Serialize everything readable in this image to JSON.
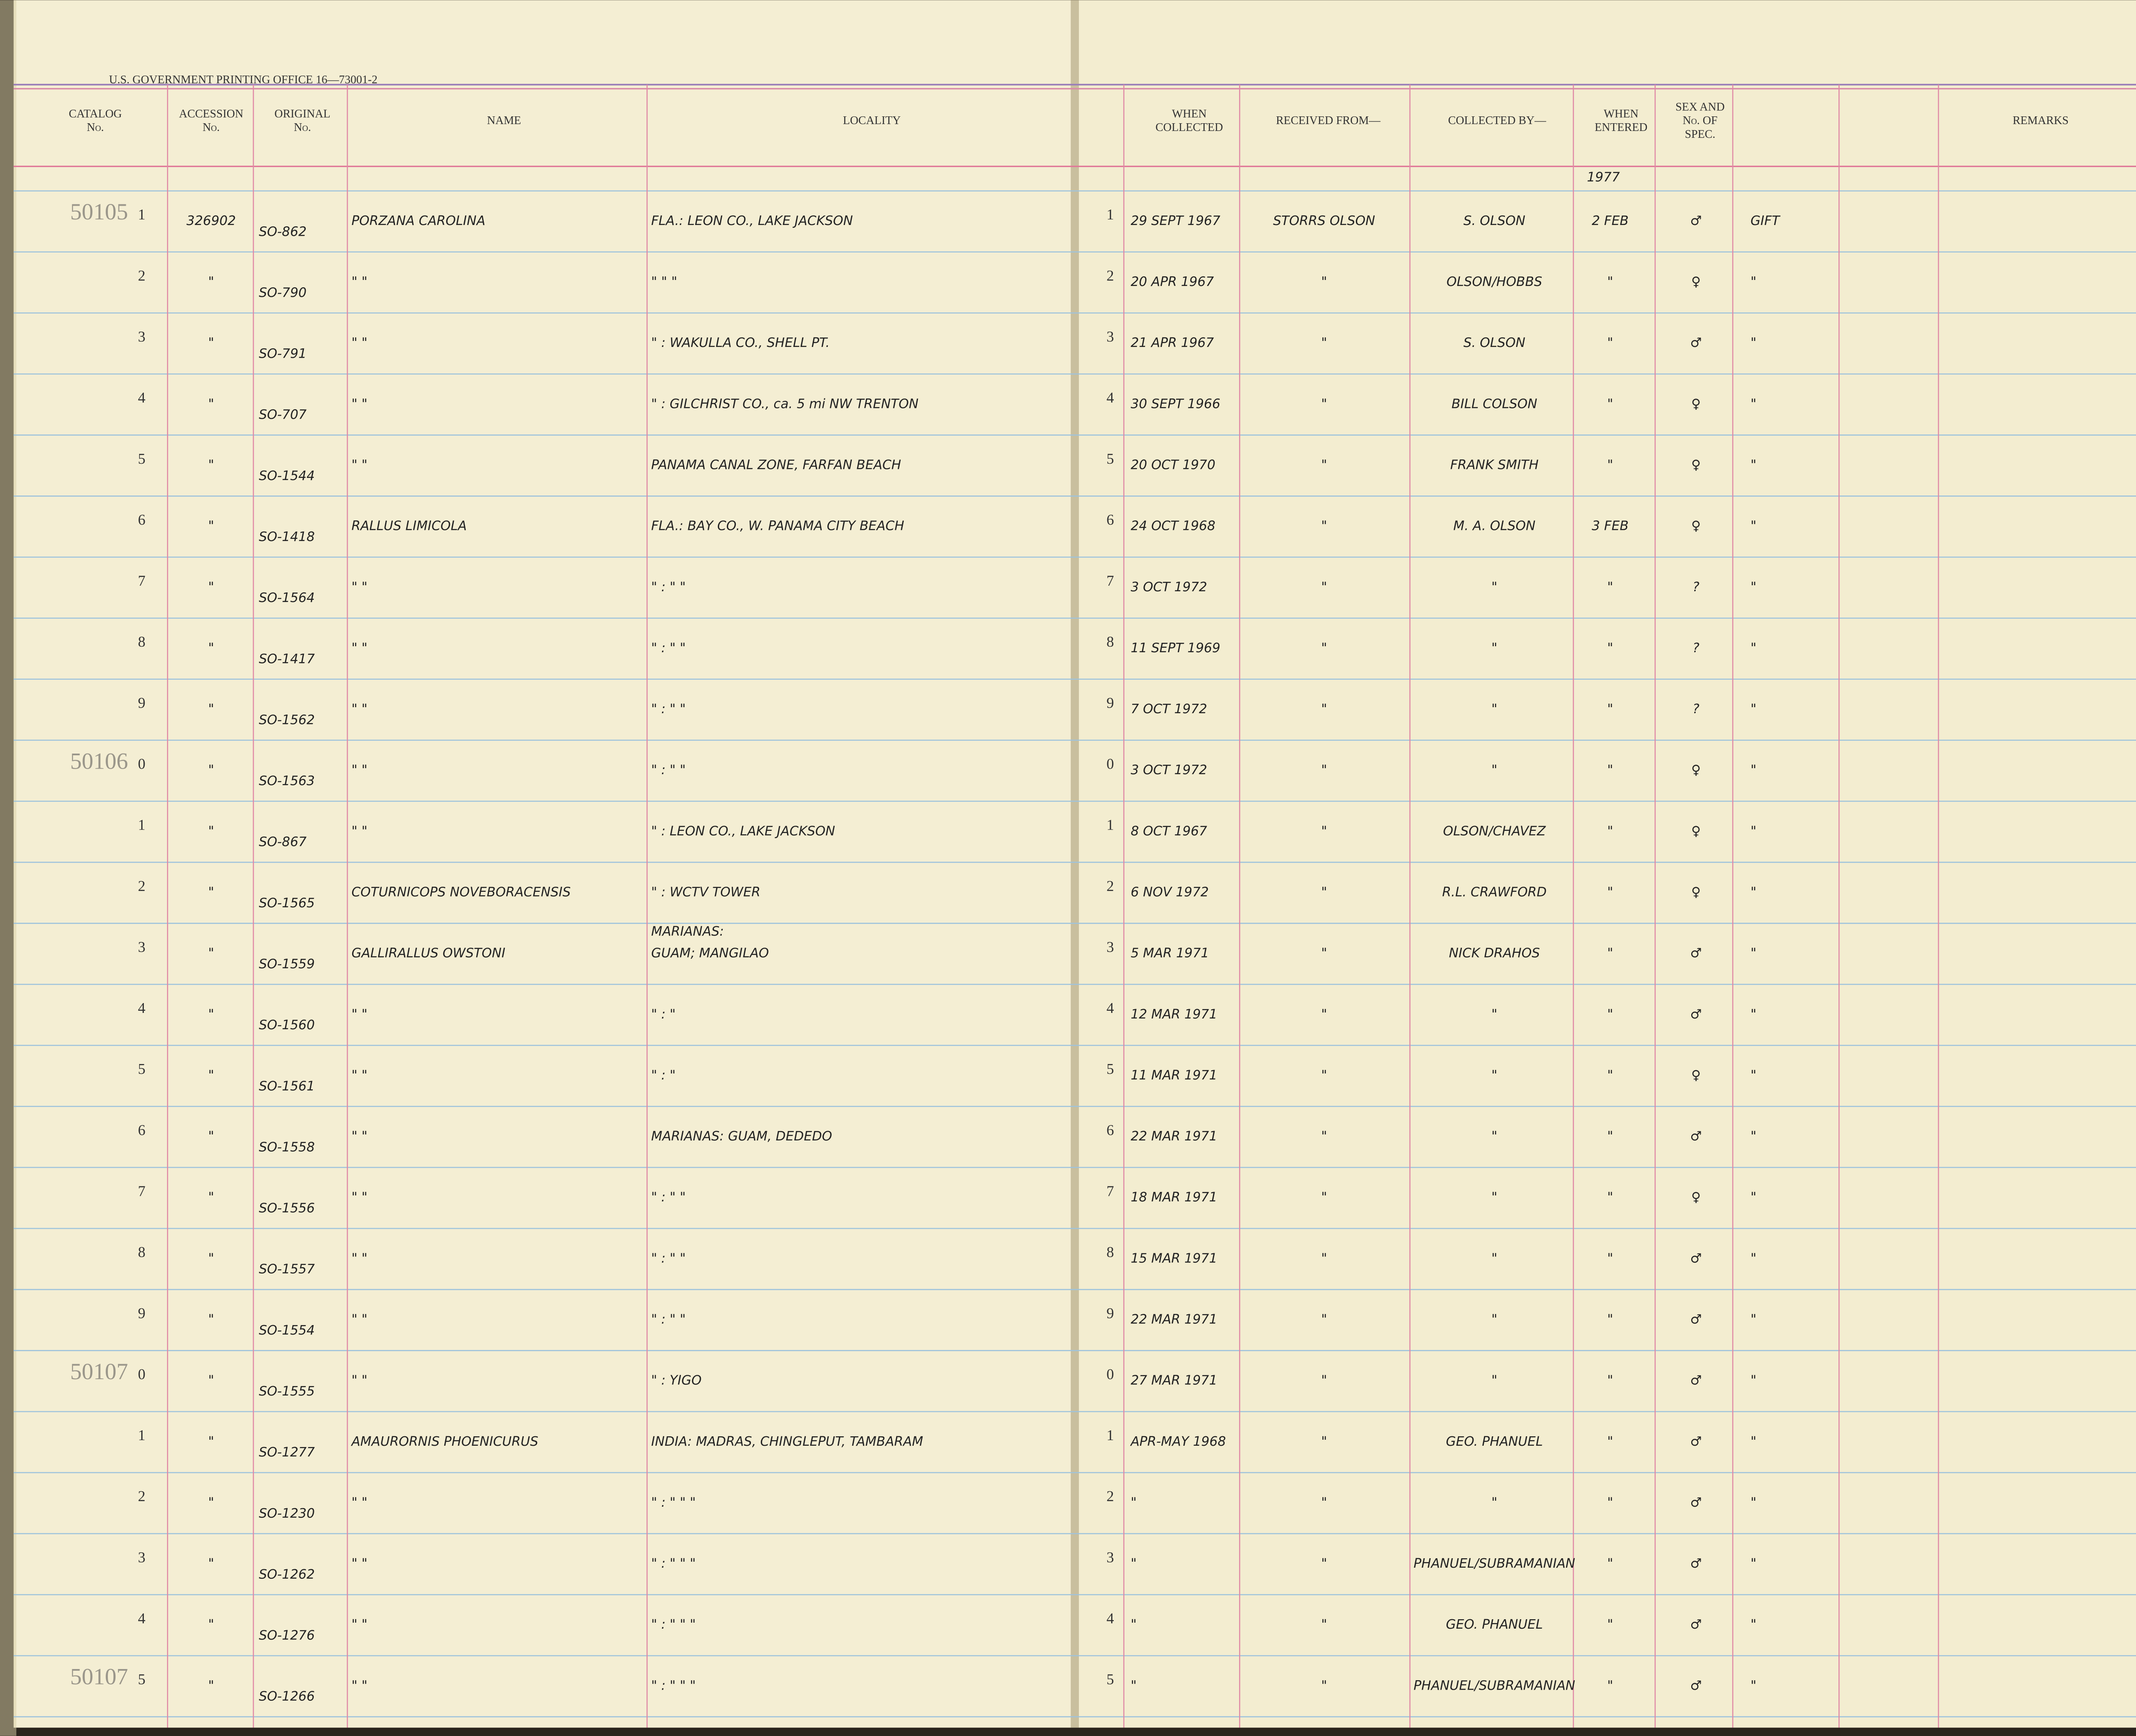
{
  "header": {
    "printer": "U.S. GOVERNMENT PRINTING OFFICE   16—73001-2",
    "catalog": [
      "CATALOG",
      "No."
    ],
    "accession": [
      "ACCESSION",
      "No."
    ],
    "original": [
      "ORIGINAL",
      "No."
    ],
    "name": [
      "NAME"
    ],
    "locality": [
      "LOCALITY"
    ],
    "collected": [
      "WHEN",
      "COLLECTED"
    ],
    "received": [
      "RECEIVED FROM—"
    ],
    "collected_by": [
      "COLLECTED BY—"
    ],
    "entered": [
      "WHEN",
      "ENTERED"
    ],
    "sex": [
      "SEX AND",
      "No. OF",
      "SPEC."
    ],
    "remarks": [
      "REMARKS"
    ],
    "year_note": "1977"
  },
  "rows": [
    {
      "catalog": "50105",
      "unit": "1",
      "accession": "326902",
      "original": "SO-862",
      "name": "PORZANA CAROLINA",
      "locality": "FLA.: LEON CO., LAKE JACKSON",
      "right_unit": "1",
      "collected": "29 SEPT 1967",
      "received": "STORRS OLSON",
      "collected_by": "S. OLSON",
      "entered": "2 FEB",
      "sex": "♂",
      "remarks": "GIFT"
    },
    {
      "unit": "2",
      "accession": "\"",
      "original": "SO-790",
      "name": "\"      \"",
      "locality": "\"        \"          \"",
      "right_unit": "2",
      "collected": "20 APR 1967",
      "received": "\"",
      "collected_by": "OLSON/HOBBS",
      "entered": "\"",
      "sex": "♀",
      "remarks": "\""
    },
    {
      "unit": "3",
      "accession": "\"",
      "original": "SO-791",
      "name": "\"      \"",
      "locality": "\" :  WAKULLA CO., SHELL PT.",
      "right_unit": "3",
      "collected": "21 APR 1967",
      "received": "\"",
      "collected_by": "S. OLSON",
      "entered": "\"",
      "sex": "♂",
      "remarks": "\""
    },
    {
      "unit": "4",
      "accession": "\"",
      "original": "SO-707",
      "name": "\"      \"",
      "locality": "\" :  GILCHRIST CO., ca. 5 mi NW TRENTON",
      "right_unit": "4",
      "collected": "30 SEPT 1966",
      "received": "\"",
      "collected_by": "BILL COLSON",
      "entered": "\"",
      "sex": "♀",
      "remarks": "\""
    },
    {
      "unit": "5",
      "accession": "\"",
      "original": "SO-1544",
      "name": "\"      \"",
      "locality": "PANAMA CANAL ZONE, FARFAN BEACH",
      "right_unit": "5",
      "collected": "20 OCT 1970",
      "received": "\"",
      "collected_by": "FRANK SMITH",
      "entered": "\"",
      "sex": "♀",
      "remarks": "\""
    },
    {
      "unit": "6",
      "accession": "\"",
      "original": "SO-1418",
      "name": "RALLUS LIMICOLA",
      "locality": "FLA.: BAY CO., W. PANAMA CITY BEACH",
      "right_unit": "6",
      "collected": "24 OCT 1968",
      "received": "\"",
      "collected_by": "M. A. OLSON",
      "entered": "3 FEB",
      "sex": "♀",
      "remarks": "\""
    },
    {
      "unit": "7",
      "accession": "\"",
      "original": "SO-1564",
      "name": "\"      \"",
      "locality": "\"  :     \"        \"",
      "right_unit": "7",
      "collected": "3 OCT 1972",
      "received": "\"",
      "collected_by": "\"",
      "entered": "\"",
      "sex": "?",
      "remarks": "\""
    },
    {
      "unit": "8",
      "accession": "\"",
      "original": "SO-1417",
      "name": "\"      \"",
      "locality": "\"  :     \"        \"",
      "right_unit": "8",
      "collected": "11 SEPT 1969",
      "received": "\"",
      "collected_by": "\"",
      "entered": "\"",
      "sex": "?",
      "remarks": "\""
    },
    {
      "unit": "9",
      "accession": "\"",
      "original": "SO-1562",
      "name": "\"      \"",
      "locality": "\"  :     \"        \"",
      "right_unit": "9",
      "collected": "7 OCT 1972",
      "received": "\"",
      "collected_by": "\"",
      "entered": "\"",
      "sex": "?",
      "remarks": "\""
    },
    {
      "catalog": "50106",
      "unit": "0",
      "accession": "\"",
      "original": "SO-1563",
      "name": "\"      \"",
      "locality": "\"  :     \"        \"",
      "right_unit": "0",
      "collected": "3 OCT 1972",
      "received": "\"",
      "collected_by": "\"",
      "entered": "\"",
      "sex": "♀",
      "remarks": "\""
    },
    {
      "unit": "1",
      "accession": "\"",
      "original": "SO-867",
      "name": "\"      \"",
      "locality": "\" :  LEON CO., LAKE JACKSON",
      "right_unit": "1",
      "collected": "8 OCT 1967",
      "received": "\"",
      "collected_by": "OLSON/CHAVEZ",
      "entered": "\"",
      "sex": "♀",
      "remarks": "\""
    },
    {
      "unit": "2",
      "accession": "\"",
      "original": "SO-1565",
      "name": "COTURNICOPS NOVEBORACENSIS",
      "locality": "\"  :        WCTV TOWER",
      "right_unit": "2",
      "collected": "6 NOV 1972",
      "received": "\"",
      "collected_by": "R.L. CRAWFORD",
      "entered": "\"",
      "sex": "♀",
      "remarks": "\""
    },
    {
      "unit": "3",
      "accession": "\"",
      "original": "SO-1559",
      "name": "GALLIRALLUS OWSTONI",
      "locality_note": "MARIANAS:",
      "locality": "GUAM; MANGILAO",
      "right_unit": "3",
      "collected": "5 MAR 1971",
      "received": "\"",
      "collected_by": "NICK DRAHOS",
      "entered": "\"",
      "sex": "♂",
      "remarks": "\""
    },
    {
      "unit": "4",
      "accession": "\"",
      "original": "SO-1560",
      "name": "\"      \"",
      "locality": "\"  :     \"",
      "right_unit": "4",
      "collected": "12 MAR 1971",
      "received": "\"",
      "collected_by": "\"",
      "entered": "\"",
      "sex": "♂",
      "remarks": "\""
    },
    {
      "unit": "5",
      "accession": "\"",
      "original": "SO-1561",
      "name": "\"      \"",
      "locality": "\"  :     \"",
      "right_unit": "5",
      "collected": "11 MAR 1971",
      "received": "\"",
      "collected_by": "\"",
      "entered": "\"",
      "sex": "♀",
      "remarks": "\""
    },
    {
      "unit": "6",
      "accession": "\"",
      "original": "SO-1558",
      "name": "\"      \"",
      "locality": "MARIANAS: GUAM, DEDEDO",
      "right_unit": "6",
      "collected": "22 MAR 1971",
      "received": "\"",
      "collected_by": "\"",
      "entered": "\"",
      "sex": "♂",
      "remarks": "\""
    },
    {
      "unit": "7",
      "accession": "\"",
      "original": "SO-1556",
      "name": "\"      \"",
      "locality": "\"  :     \"       \"",
      "right_unit": "7",
      "collected": "18 MAR 1971",
      "received": "\"",
      "collected_by": "\"",
      "entered": "\"",
      "sex": "♀",
      "remarks": "\""
    },
    {
      "unit": "8",
      "accession": "\"",
      "original": "SO-1557",
      "name": "\"      \"",
      "locality": "\"  :     \"       \"",
      "right_unit": "8",
      "collected": "15 MAR 1971",
      "received": "\"",
      "collected_by": "\"",
      "entered": "\"",
      "sex": "♂",
      "remarks": "\""
    },
    {
      "unit": "9",
      "accession": "\"",
      "original": "SO-1554",
      "name": "\"      \"",
      "locality": "\"  :     \"       \"",
      "right_unit": "9",
      "collected": "22 MAR 1971",
      "received": "\"",
      "collected_by": "\"",
      "entered": "\"",
      "sex": "♂",
      "remarks": "\""
    },
    {
      "catalog": "50107",
      "unit": "0",
      "accession": "\"",
      "original": "SO-1555",
      "name": "\"      \"",
      "locality": "\"  :          YIGO",
      "right_unit": "0",
      "collected": "27 MAR 1971",
      "received": "\"",
      "collected_by": "\"",
      "entered": "\"",
      "sex": "♂",
      "remarks": "\""
    },
    {
      "unit": "1",
      "accession": "\"",
      "original": "SO-1277",
      "name": "AMAURORNIS PHOENICURUS",
      "locality": "INDIA: MADRAS, CHINGLEPUT, TAMBARAM",
      "right_unit": "1",
      "collected": "APR-MAY 1968",
      "received": "\"",
      "collected_by": "GEO. PHANUEL",
      "entered": "\"",
      "sex": "♂",
      "remarks": "\""
    },
    {
      "unit": "2",
      "accession": "\"",
      "original": "SO-1230",
      "name": "\"      \"",
      "locality": "\"  :     \"       \"      \"",
      "right_unit": "2",
      "collected": "\"",
      "received": "\"",
      "collected_by": "\"",
      "entered": "\"",
      "sex": "♂",
      "remarks": "\""
    },
    {
      "unit": "3",
      "accession": "\"",
      "original": "SO-1262",
      "name": "\"      \"",
      "locality": "\"  :     \"       \"      \"",
      "right_unit": "3",
      "collected": "\"",
      "received": "\"",
      "collected_by": "PHANUEL/SUBRAMANIAN",
      "entered": "\"",
      "sex": "♂",
      "remarks": "\""
    },
    {
      "unit": "4",
      "accession": "\"",
      "original": "SO-1276",
      "name": "\"      \"",
      "locality": "\"  :     \"       \"      \"",
      "right_unit": "4",
      "collected": "\"",
      "received": "\"",
      "collected_by": "GEO. PHANUEL",
      "entered": "\"",
      "sex": "♂",
      "remarks": "\""
    },
    {
      "catalog": "50107",
      "unit": "5",
      "accession": "\"",
      "original": "SO-1266",
      "name": "\"      \"",
      "locality": "\"  :     \"       \"      \"",
      "right_unit": "5",
      "collected": "\"",
      "received": "\"",
      "collected_by": "PHANUEL/SUBRAMANIAN",
      "entered": "\"",
      "sex": "♂",
      "remarks": "\""
    }
  ]
}
